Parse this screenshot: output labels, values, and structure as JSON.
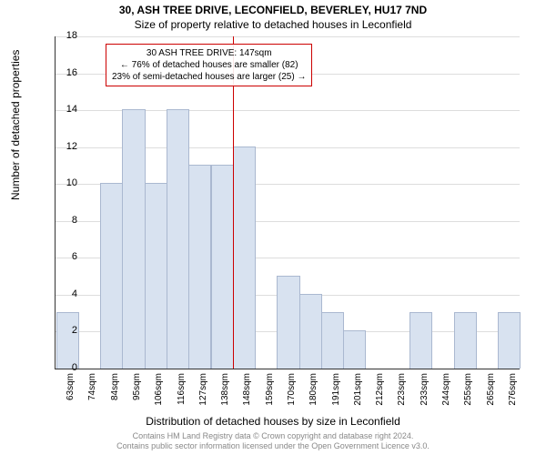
{
  "title": "30, ASH TREE DRIVE, LECONFIELD, BEVERLEY, HU17 7ND",
  "subtitle": "Size of property relative to detached houses in Leconfield",
  "chart": {
    "type": "histogram",
    "y_axis_label": "Number of detached properties",
    "x_axis_label": "Distribution of detached houses by size in Leconfield",
    "ylim": [
      0,
      18
    ],
    "ytick_step": 2,
    "bar_fill": "#d8e2f0",
    "bar_stroke": "#aab8d0",
    "grid_color": "#dddddd",
    "axis_color": "#333333",
    "background_color": "#ffffff",
    "x_categories": [
      "63sqm",
      "74sqm",
      "84sqm",
      "95sqm",
      "106sqm",
      "116sqm",
      "127sqm",
      "138sqm",
      "148sqm",
      "159sqm",
      "170sqm",
      "180sqm",
      "191sqm",
      "201sqm",
      "212sqm",
      "223sqm",
      "233sqm",
      "244sqm",
      "255sqm",
      "265sqm",
      "276sqm"
    ],
    "values": [
      3,
      0,
      10,
      14,
      10,
      14,
      11,
      11,
      12,
      0,
      5,
      4,
      3,
      2,
      0,
      0,
      3,
      0,
      3,
      0,
      3
    ],
    "marker": {
      "position_index": 8,
      "color": "#cc0000"
    },
    "annotation": {
      "line1": "30 ASH TREE DRIVE: 147sqm",
      "line2": "← 76% of detached houses are smaller (82)",
      "line3": "23% of semi-detached houses are larger (25) →",
      "border_color": "#cc0000"
    }
  },
  "copyright": {
    "line1": "Contains HM Land Registry data © Crown copyright and database right 2024.",
    "line2": "Contains public sector information licensed under the Open Government Licence v3.0."
  }
}
